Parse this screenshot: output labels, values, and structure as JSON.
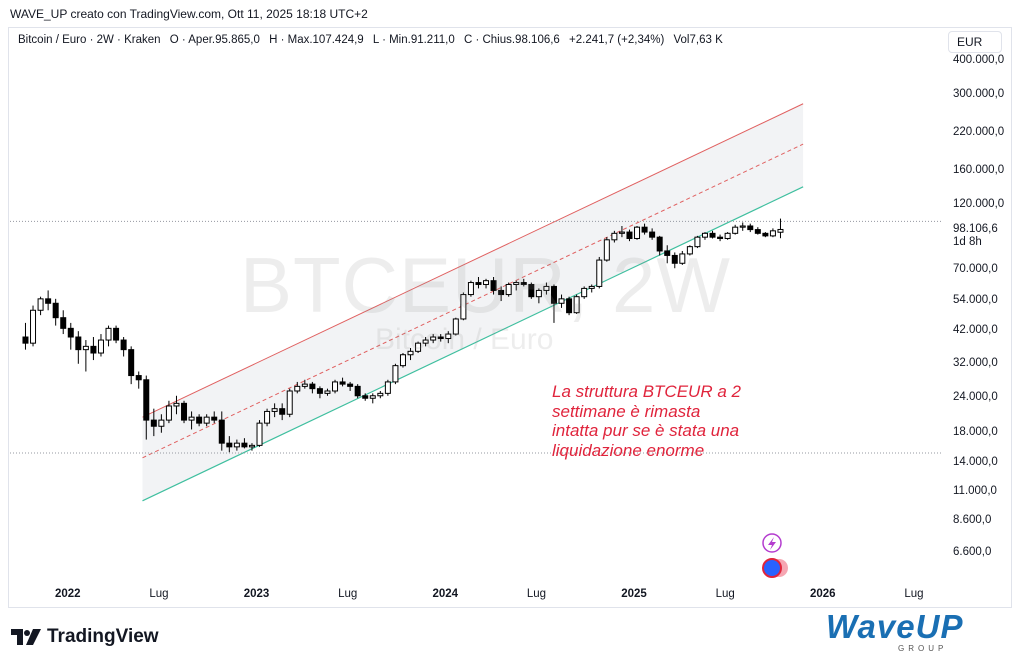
{
  "header": {
    "attribution": "WAVE_UP creato con TradingView.com, Ott 11, 2025 18:18 UTC+2"
  },
  "legend": {
    "symbol": "Bitcoin / Euro · 2W · Kraken",
    "open": "O · Aper.95.865,0",
    "high": "H · Max.107.424,9",
    "low": "L · Min.91.211,0",
    "close": "C · Chius.98.106,6",
    "change": "+2.241,7 (+2,34%)",
    "volume": "Vol7,63 K"
  },
  "currency_button": "EUR",
  "last_price": {
    "value": "98.106,6",
    "countdown": "1d 8h"
  },
  "watermark": {
    "ticker": "BTCEUR, 2W",
    "name": "Bitcoin / Euro"
  },
  "annotation": [
    "La struttura BTCEUR a 2",
    "settimane è rimasta",
    "intatta pur se è stata una",
    "liquidazione enorme"
  ],
  "branding": {
    "tradingview": "TradingView",
    "waveup": "WaveUP",
    "waveup_sub": "GROUP"
  },
  "colors": {
    "up_candle": "#ffffff",
    "down_candle": "#000000",
    "channel_upper": "#e06060",
    "channel_mid": "#e06060",
    "channel_lower": "#3fbf9f",
    "channel_fill": "#f2f3f5",
    "annotation": "#e0243c",
    "reference_lines": "#9598a1"
  },
  "chart_data": {
    "type": "candlestick",
    "scale": "log",
    "y_ticks": [
      "400.000,0",
      "300.000,0",
      "220.000,0",
      "160.000,0",
      "120.000,0",
      "70.000,0",
      "54.000,0",
      "42.000,0",
      "32.000,0",
      "24.000,0",
      "18.000,0",
      "14.000,0",
      "11.000,0",
      "8.600,0",
      "6.600,0"
    ],
    "y_tick_values": [
      400000,
      300000,
      220000,
      160000,
      120000,
      70000,
      54000,
      42000,
      32000,
      24000,
      18000,
      14000,
      11000,
      8600,
      6600
    ],
    "x_ticks": [
      {
        "label": "2022",
        "bold": true,
        "t": 2022.0
      },
      {
        "label": "Lug",
        "bold": false,
        "t": 2022.5
      },
      {
        "label": "2023",
        "bold": true,
        "t": 2023.0
      },
      {
        "label": "Lug",
        "bold": false,
        "t": 2023.5
      },
      {
        "label": "2024",
        "bold": true,
        "t": 2024.0
      },
      {
        "label": "Lug",
        "bold": false,
        "t": 2024.5
      },
      {
        "label": "2025",
        "bold": true,
        "t": 2025.0
      },
      {
        "label": "Lug",
        "bold": false,
        "t": 2025.5
      },
      {
        "label": "2026",
        "bold": true,
        "t": 2026.0
      },
      {
        "label": "Lug",
        "bold": false,
        "t": 2026.5
      }
    ],
    "horizontal_levels": [
      105000,
      15200
    ],
    "channel": {
      "start": {
        "t": 2022.4,
        "upper": 20500,
        "mid": 14600,
        "lower": 10200
      },
      "end": {
        "t": 2025.9,
        "upper": 280000,
        "mid": 200000,
        "lower": 140000
      }
    },
    "candles": [
      {
        "t": 2021.78,
        "o": 40000,
        "h": 45000,
        "l": 36000,
        "c": 38000
      },
      {
        "t": 2021.82,
        "o": 38000,
        "h": 52000,
        "l": 37000,
        "c": 50000
      },
      {
        "t": 2021.86,
        "o": 50000,
        "h": 56000,
        "l": 48000,
        "c": 55000
      },
      {
        "t": 2021.9,
        "o": 55000,
        "h": 59000,
        "l": 50000,
        "c": 53000
      },
      {
        "t": 2021.94,
        "o": 53000,
        "h": 55000,
        "l": 44000,
        "c": 47000
      },
      {
        "t": 2021.98,
        "o": 47000,
        "h": 50000,
        "l": 41000,
        "c": 43000
      },
      {
        "t": 2022.02,
        "o": 43000,
        "h": 45000,
        "l": 36000,
        "c": 40000
      },
      {
        "t": 2022.06,
        "o": 40000,
        "h": 42000,
        "l": 32000,
        "c": 36000
      },
      {
        "t": 2022.1,
        "o": 36000,
        "h": 39000,
        "l": 30000,
        "c": 37000
      },
      {
        "t": 2022.14,
        "o": 37000,
        "h": 40000,
        "l": 33000,
        "c": 35000
      },
      {
        "t": 2022.18,
        "o": 35000,
        "h": 41000,
        "l": 34000,
        "c": 39000
      },
      {
        "t": 2022.22,
        "o": 39000,
        "h": 44000,
        "l": 37000,
        "c": 43000
      },
      {
        "t": 2022.26,
        "o": 43000,
        "h": 44000,
        "l": 38000,
        "c": 39000
      },
      {
        "t": 2022.3,
        "o": 39000,
        "h": 40000,
        "l": 34000,
        "c": 36000
      },
      {
        "t": 2022.34,
        "o": 36000,
        "h": 37000,
        "l": 27000,
        "c": 29000
      },
      {
        "t": 2022.38,
        "o": 29000,
        "h": 30000,
        "l": 26000,
        "c": 28000
      },
      {
        "t": 2022.42,
        "o": 28000,
        "h": 29000,
        "l": 17000,
        "c": 20000
      },
      {
        "t": 2022.46,
        "o": 20000,
        "h": 22000,
        "l": 17500,
        "c": 19000
      },
      {
        "t": 2022.5,
        "o": 19000,
        "h": 21000,
        "l": 18000,
        "c": 20000
      },
      {
        "t": 2022.54,
        "o": 20000,
        "h": 23500,
        "l": 19500,
        "c": 22500
      },
      {
        "t": 2022.58,
        "o": 22500,
        "h": 24500,
        "l": 21000,
        "c": 23000
      },
      {
        "t": 2022.62,
        "o": 23000,
        "h": 23500,
        "l": 19500,
        "c": 20000
      },
      {
        "t": 2022.66,
        "o": 20000,
        "h": 21500,
        "l": 18500,
        "c": 20500
      },
      {
        "t": 2022.7,
        "o": 20500,
        "h": 21000,
        "l": 19000,
        "c": 19500
      },
      {
        "t": 2022.74,
        "o": 19500,
        "h": 21000,
        "l": 19000,
        "c": 20500
      },
      {
        "t": 2022.78,
        "o": 20500,
        "h": 21500,
        "l": 19500,
        "c": 20000
      },
      {
        "t": 2022.82,
        "o": 20000,
        "h": 21500,
        "l": 15500,
        "c": 16500
      },
      {
        "t": 2022.86,
        "o": 16500,
        "h": 17500,
        "l": 15300,
        "c": 16000
      },
      {
        "t": 2022.9,
        "o": 16000,
        "h": 17000,
        "l": 15500,
        "c": 16500
      },
      {
        "t": 2022.94,
        "o": 16500,
        "h": 17200,
        "l": 15800,
        "c": 16000
      },
      {
        "t": 2022.98,
        "o": 16000,
        "h": 16500,
        "l": 15500,
        "c": 16200
      },
      {
        "t": 2023.02,
        "o": 16200,
        "h": 20000,
        "l": 16000,
        "c": 19500
      },
      {
        "t": 2023.06,
        "o": 19500,
        "h": 22000,
        "l": 19000,
        "c": 21500
      },
      {
        "t": 2023.1,
        "o": 21500,
        "h": 23000,
        "l": 20500,
        "c": 22000
      },
      {
        "t": 2023.14,
        "o": 22000,
        "h": 23000,
        "l": 20000,
        "c": 21000
      },
      {
        "t": 2023.18,
        "o": 21000,
        "h": 26000,
        "l": 20500,
        "c": 25500
      },
      {
        "t": 2023.22,
        "o": 25500,
        "h": 27500,
        "l": 25000,
        "c": 26500
      },
      {
        "t": 2023.26,
        "o": 26500,
        "h": 28000,
        "l": 26000,
        "c": 27000
      },
      {
        "t": 2023.3,
        "o": 27000,
        "h": 27500,
        "l": 25000,
        "c": 26000
      },
      {
        "t": 2023.34,
        "o": 26000,
        "h": 26500,
        "l": 24000,
        "c": 25000
      },
      {
        "t": 2023.38,
        "o": 25000,
        "h": 26000,
        "l": 24500,
        "c": 25500
      },
      {
        "t": 2023.42,
        "o": 25500,
        "h": 28000,
        "l": 25000,
        "c": 27500
      },
      {
        "t": 2023.46,
        "o": 27500,
        "h": 28500,
        "l": 26500,
        "c": 27000
      },
      {
        "t": 2023.5,
        "o": 27000,
        "h": 27500,
        "l": 25500,
        "c": 26500
      },
      {
        "t": 2023.54,
        "o": 26500,
        "h": 27000,
        "l": 24000,
        "c": 24500
      },
      {
        "t": 2023.58,
        "o": 24500,
        "h": 25000,
        "l": 23500,
        "c": 24000
      },
      {
        "t": 2023.62,
        "o": 24000,
        "h": 25000,
        "l": 23000,
        "c": 24500
      },
      {
        "t": 2023.66,
        "o": 24500,
        "h": 25500,
        "l": 24000,
        "c": 25000
      },
      {
        "t": 2023.7,
        "o": 25000,
        "h": 28000,
        "l": 24500,
        "c": 27500
      },
      {
        "t": 2023.74,
        "o": 27500,
        "h": 32000,
        "l": 27000,
        "c": 31500
      },
      {
        "t": 2023.78,
        "o": 31500,
        "h": 35000,
        "l": 31000,
        "c": 34500
      },
      {
        "t": 2023.82,
        "o": 34500,
        "h": 36500,
        "l": 33000,
        "c": 35500
      },
      {
        "t": 2023.86,
        "o": 35500,
        "h": 38500,
        "l": 35000,
        "c": 38000
      },
      {
        "t": 2023.9,
        "o": 38000,
        "h": 40000,
        "l": 37000,
        "c": 39000
      },
      {
        "t": 2023.94,
        "o": 39000,
        "h": 41000,
        "l": 38000,
        "c": 40000
      },
      {
        "t": 2023.98,
        "o": 40000,
        "h": 41000,
        "l": 38500,
        "c": 39500
      },
      {
        "t": 2024.02,
        "o": 39500,
        "h": 42000,
        "l": 38000,
        "c": 41000
      },
      {
        "t": 2024.06,
        "o": 41000,
        "h": 47000,
        "l": 40500,
        "c": 46500
      },
      {
        "t": 2024.1,
        "o": 46500,
        "h": 58000,
        "l": 46000,
        "c": 57000
      },
      {
        "t": 2024.14,
        "o": 57000,
        "h": 64000,
        "l": 56000,
        "c": 63000
      },
      {
        "t": 2024.18,
        "o": 63000,
        "h": 66000,
        "l": 60000,
        "c": 62000
      },
      {
        "t": 2024.22,
        "o": 62000,
        "h": 65000,
        "l": 60000,
        "c": 64000
      },
      {
        "t": 2024.26,
        "o": 64000,
        "h": 66000,
        "l": 57000,
        "c": 59000
      },
      {
        "t": 2024.3,
        "o": 59000,
        "h": 61000,
        "l": 54000,
        "c": 57000
      },
      {
        "t": 2024.34,
        "o": 57000,
        "h": 63000,
        "l": 56000,
        "c": 62000
      },
      {
        "t": 2024.38,
        "o": 62000,
        "h": 64000,
        "l": 59000,
        "c": 63000
      },
      {
        "t": 2024.42,
        "o": 63000,
        "h": 65000,
        "l": 61000,
        "c": 62000
      },
      {
        "t": 2024.46,
        "o": 62000,
        "h": 63000,
        "l": 55000,
        "c": 56000
      },
      {
        "t": 2024.5,
        "o": 56000,
        "h": 60000,
        "l": 53000,
        "c": 59000
      },
      {
        "t": 2024.54,
        "o": 59000,
        "h": 63000,
        "l": 57000,
        "c": 61000
      },
      {
        "t": 2024.58,
        "o": 61000,
        "h": 62000,
        "l": 45000,
        "c": 53000
      },
      {
        "t": 2024.62,
        "o": 53000,
        "h": 57000,
        "l": 51000,
        "c": 55000
      },
      {
        "t": 2024.66,
        "o": 55000,
        "h": 56000,
        "l": 48000,
        "c": 49000
      },
      {
        "t": 2024.7,
        "o": 49000,
        "h": 57000,
        "l": 48500,
        "c": 56000
      },
      {
        "t": 2024.74,
        "o": 56000,
        "h": 61000,
        "l": 55000,
        "c": 60000
      },
      {
        "t": 2024.78,
        "o": 60000,
        "h": 62000,
        "l": 58000,
        "c": 61000
      },
      {
        "t": 2024.82,
        "o": 61000,
        "h": 78000,
        "l": 60000,
        "c": 76000
      },
      {
        "t": 2024.86,
        "o": 76000,
        "h": 92000,
        "l": 75000,
        "c": 90000
      },
      {
        "t": 2024.9,
        "o": 90000,
        "h": 97000,
        "l": 88000,
        "c": 95000
      },
      {
        "t": 2024.94,
        "o": 95000,
        "h": 101000,
        "l": 92000,
        "c": 96000
      },
      {
        "t": 2024.98,
        "o": 96000,
        "h": 98000,
        "l": 89000,
        "c": 91000
      },
      {
        "t": 2025.02,
        "o": 91000,
        "h": 101000,
        "l": 90000,
        "c": 100000
      },
      {
        "t": 2025.06,
        "o": 100000,
        "h": 103000,
        "l": 94000,
        "c": 96000
      },
      {
        "t": 2025.1,
        "o": 96000,
        "h": 99000,
        "l": 90000,
        "c": 92000
      },
      {
        "t": 2025.14,
        "o": 92000,
        "h": 93000,
        "l": 79000,
        "c": 82000
      },
      {
        "t": 2025.18,
        "o": 82000,
        "h": 86000,
        "l": 74000,
        "c": 79000
      },
      {
        "t": 2025.22,
        "o": 79000,
        "h": 81000,
        "l": 71000,
        "c": 74000
      },
      {
        "t": 2025.26,
        "o": 74000,
        "h": 82000,
        "l": 73000,
        "c": 80000
      },
      {
        "t": 2025.3,
        "o": 80000,
        "h": 86000,
        "l": 79000,
        "c": 85000
      },
      {
        "t": 2025.34,
        "o": 85000,
        "h": 93000,
        "l": 84000,
        "c": 92000
      },
      {
        "t": 2025.38,
        "o": 92000,
        "h": 96000,
        "l": 90000,
        "c": 95000
      },
      {
        "t": 2025.42,
        "o": 95000,
        "h": 97000,
        "l": 91000,
        "c": 92000
      },
      {
        "t": 2025.46,
        "o": 92000,
        "h": 94000,
        "l": 89000,
        "c": 91000
      },
      {
        "t": 2025.5,
        "o": 91000,
        "h": 96000,
        "l": 90000,
        "c": 95000
      },
      {
        "t": 2025.54,
        "o": 95000,
        "h": 102000,
        "l": 94000,
        "c": 100000
      },
      {
        "t": 2025.58,
        "o": 100000,
        "h": 104000,
        "l": 97000,
        "c": 101000
      },
      {
        "t": 2025.62,
        "o": 101000,
        "h": 103000,
        "l": 96000,
        "c": 98000
      },
      {
        "t": 2025.66,
        "o": 98000,
        "h": 100000,
        "l": 94000,
        "c": 95000
      },
      {
        "t": 2025.7,
        "o": 95000,
        "h": 96000,
        "l": 92000,
        "c": 93000
      },
      {
        "t": 2025.74,
        "o": 93000,
        "h": 99000,
        "l": 92000,
        "c": 97000
      },
      {
        "t": 2025.78,
        "o": 95865,
        "h": 107425,
        "l": 91211,
        "c": 98106.6
      }
    ]
  }
}
